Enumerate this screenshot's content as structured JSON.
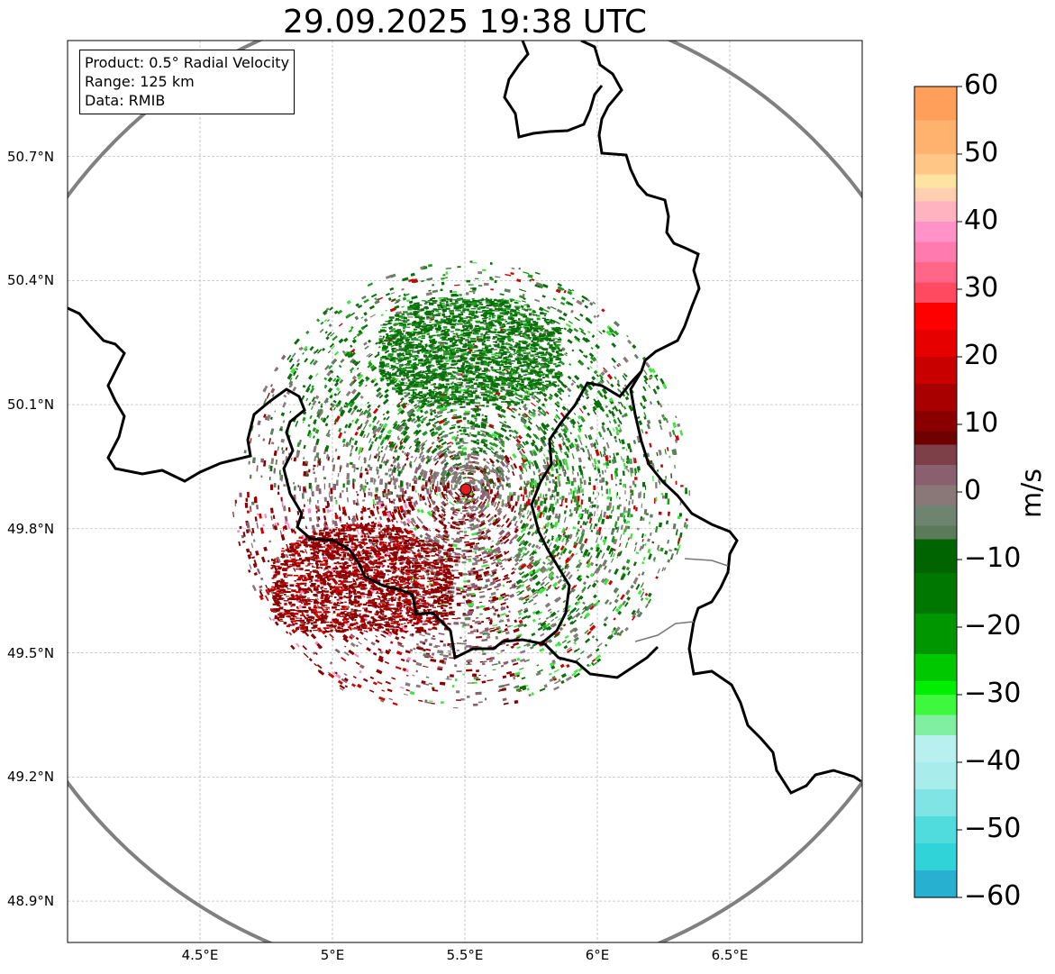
{
  "title": "29.09.2025 19:38 UTC",
  "info": {
    "product": "Product: 0.5° Radial Velocity",
    "range": "Range: 125 km",
    "data": "Data: RMIB"
  },
  "map": {
    "lon_range": [
      4.0,
      7.0
    ],
    "lat_range": [
      48.8,
      50.98
    ],
    "radar_site": {
      "lon": 5.505,
      "lat": 49.915
    },
    "range_km": 125,
    "lat_ticks": [
      "50.7°N",
      "50.4°N",
      "50.1°N",
      "49.8°N",
      "49.5°N",
      "49.2°N",
      "48.9°N"
    ],
    "lat_values": [
      50.7,
      50.4,
      50.1,
      49.8,
      49.5,
      49.2,
      48.9
    ],
    "lon_ticks": [
      "4.5°E",
      "5°E",
      "5.5°E",
      "6°E",
      "6.5°E"
    ],
    "lon_values": [
      4.5,
      5.0,
      5.5,
      6.0,
      6.5
    ],
    "colors": {
      "border": "#000000",
      "range_ring": "#808080",
      "site_marker": "#e41a1c",
      "grid": "#b0b0b0"
    }
  },
  "colorbar": {
    "label": "m/s",
    "min": -60,
    "max": 60,
    "ticks": [
      "60",
      "50",
      "40",
      "30",
      "20",
      "10",
      "0",
      "−10",
      "−20",
      "−30",
      "−40",
      "−50",
      "−60"
    ],
    "tick_values": [
      60,
      50,
      40,
      30,
      20,
      10,
      0,
      -10,
      -20,
      -30,
      -40,
      -50,
      -60
    ],
    "stops": [
      {
        "v": 60,
        "c": "#ff9f5a"
      },
      {
        "v": 55,
        "c": "#ffb26e"
      },
      {
        "v": 50,
        "c": "#ffc685"
      },
      {
        "v": 47,
        "c": "#ffe3a0"
      },
      {
        "v": 45,
        "c": "#ffcfb0"
      },
      {
        "v": 43,
        "c": "#ffb2c0"
      },
      {
        "v": 40,
        "c": "#ff93c8"
      },
      {
        "v": 37,
        "c": "#ff7bae"
      },
      {
        "v": 34,
        "c": "#ff6688"
      },
      {
        "v": 31,
        "c": "#ff4a60"
      },
      {
        "v": 28,
        "c": "#ff0000"
      },
      {
        "v": 24,
        "c": "#e60000"
      },
      {
        "v": 20,
        "c": "#c80000"
      },
      {
        "v": 16,
        "c": "#a80000"
      },
      {
        "v": 12,
        "c": "#8a0000"
      },
      {
        "v": 9,
        "c": "#6e0000"
      },
      {
        "v": 7,
        "c": "#7e4048"
      },
      {
        "v": 4,
        "c": "#8a6070"
      },
      {
        "v": 1,
        "c": "#8a7878"
      },
      {
        "v": -2,
        "c": "#6f8470"
      },
      {
        "v": -5,
        "c": "#5a7a5a"
      },
      {
        "v": -7,
        "c": "#006400"
      },
      {
        "v": -12,
        "c": "#007800"
      },
      {
        "v": -18,
        "c": "#009600"
      },
      {
        "v": -24,
        "c": "#00c800"
      },
      {
        "v": -28,
        "c": "#00ee00"
      },
      {
        "v": -30,
        "c": "#3ef83e"
      },
      {
        "v": -33,
        "c": "#80f0a0"
      },
      {
        "v": -36,
        "c": "#b8f0f0"
      },
      {
        "v": -40,
        "c": "#a8eceb"
      },
      {
        "v": -44,
        "c": "#80e4e4"
      },
      {
        "v": -48,
        "c": "#50dcdc"
      },
      {
        "v": -52,
        "c": "#30d4d8"
      },
      {
        "v": -56,
        "c": "#28b0d0"
      },
      {
        "v": -60,
        "c": "#2080c0"
      }
    ]
  },
  "echo_colors": {
    "dark_green": "#0a6e0a",
    "mid_green": "#1f9a1f",
    "light_green": "#3ee63e",
    "gray_green": "#5f7f5f",
    "gray": "#8a7a7a",
    "mauve": "#8a6070",
    "dark_red": "#8b0000",
    "red": "#d00000",
    "pink": "#ff88c0",
    "cyan": "#40d0e0"
  }
}
